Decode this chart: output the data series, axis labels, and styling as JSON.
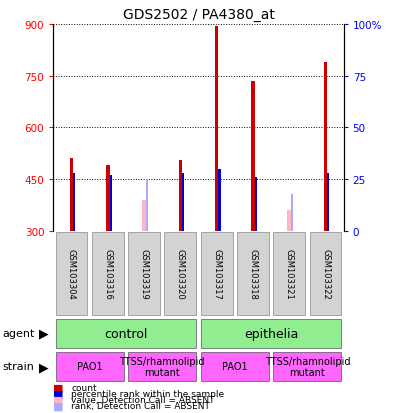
{
  "title": "GDS2502 / PA4380_at",
  "samples": [
    "GSM103304",
    "GSM103316",
    "GSM103319",
    "GSM103320",
    "GSM103317",
    "GSM103318",
    "GSM103321",
    "GSM103322"
  ],
  "count_values": [
    510,
    490,
    null,
    505,
    895,
    735,
    null,
    790
  ],
  "count_absent_values": [
    null,
    null,
    390,
    null,
    null,
    null,
    360,
    null
  ],
  "percentile_values": [
    28,
    27,
    null,
    28,
    30,
    26,
    null,
    28
  ],
  "percentile_absent_values": [
    null,
    null,
    25,
    null,
    null,
    null,
    18,
    null
  ],
  "ylim_left": [
    300,
    900
  ],
  "ylim_right": [
    0,
    100
  ],
  "yticks_left": [
    300,
    450,
    600,
    750,
    900
  ],
  "yticks_right": [
    0,
    25,
    50,
    75,
    100
  ],
  "ytick_labels_left": [
    "300",
    "450",
    "600",
    "750",
    "900"
  ],
  "ytick_labels_right": [
    "0",
    "25",
    "50",
    "75",
    "100%"
  ],
  "agent_labels": [
    {
      "label": "control",
      "span": [
        0,
        4
      ]
    },
    {
      "label": "epithelia",
      "span": [
        4,
        8
      ]
    }
  ],
  "strain_labels": [
    {
      "label": "PAO1",
      "span": [
        0,
        2
      ]
    },
    {
      "label": "TTSS/rhamnolipid\nmutant",
      "span": [
        2,
        4
      ]
    },
    {
      "label": "PAO1",
      "span": [
        4,
        6
      ]
    },
    {
      "label": "TTSS/rhamnolipid\nmutant",
      "span": [
        6,
        8
      ]
    }
  ],
  "agent_color": "#90EE90",
  "strain_color": "#FF66FF",
  "bar_bg_color": "#D3D3D3",
  "count_color": "#CC0000",
  "percentile_color": "#0000CC",
  "count_absent_color": "#FFB6C1",
  "percentile_absent_color": "#AAAAFF",
  "count_bar_width": 0.1,
  "percentile_bar_width": 0.06
}
